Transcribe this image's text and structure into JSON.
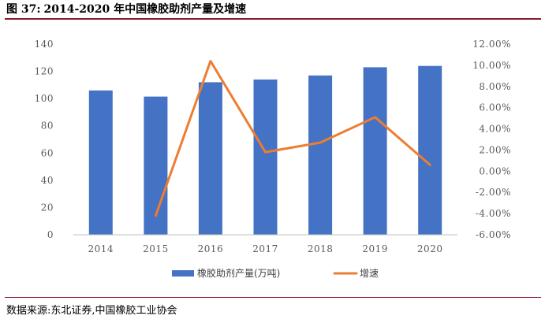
{
  "figure": {
    "label": "图 37:",
    "title": "2014-2020 年中国橡胶助剂产量及增速",
    "source": "数据来源:东北证券,中国橡胶工业协会"
  },
  "chart_data": {
    "type": "bar",
    "categories": [
      "2014",
      "2015",
      "2016",
      "2017",
      "2018",
      "2019",
      "2020"
    ],
    "series": [
      {
        "name": "橡胶助剂产量(万吨)",
        "type": "bar",
        "axis": "left",
        "values": [
          106,
          101.5,
          112,
          114,
          117,
          123,
          124
        ],
        "color": "#4472C4"
      },
      {
        "name": "增速",
        "type": "line",
        "axis": "right",
        "values": [
          null,
          -4.2,
          10.4,
          1.8,
          2.7,
          5.1,
          0.6
        ],
        "color": "#ED7D31"
      }
    ],
    "y_left": {
      "min": 0,
      "max": 140,
      "step": 20,
      "ticks": [
        "0",
        "20",
        "40",
        "60",
        "80",
        "100",
        "120",
        "140"
      ]
    },
    "y_right": {
      "min": -6,
      "max": 12,
      "step": 2,
      "ticks": [
        "-6.00%",
        "-4.00%",
        "-2.00%",
        "0.00%",
        "2.00%",
        "4.00%",
        "6.00%",
        "8.00%",
        "10.00%",
        "12.00%"
      ]
    },
    "grid": false,
    "legend": "bottom"
  }
}
